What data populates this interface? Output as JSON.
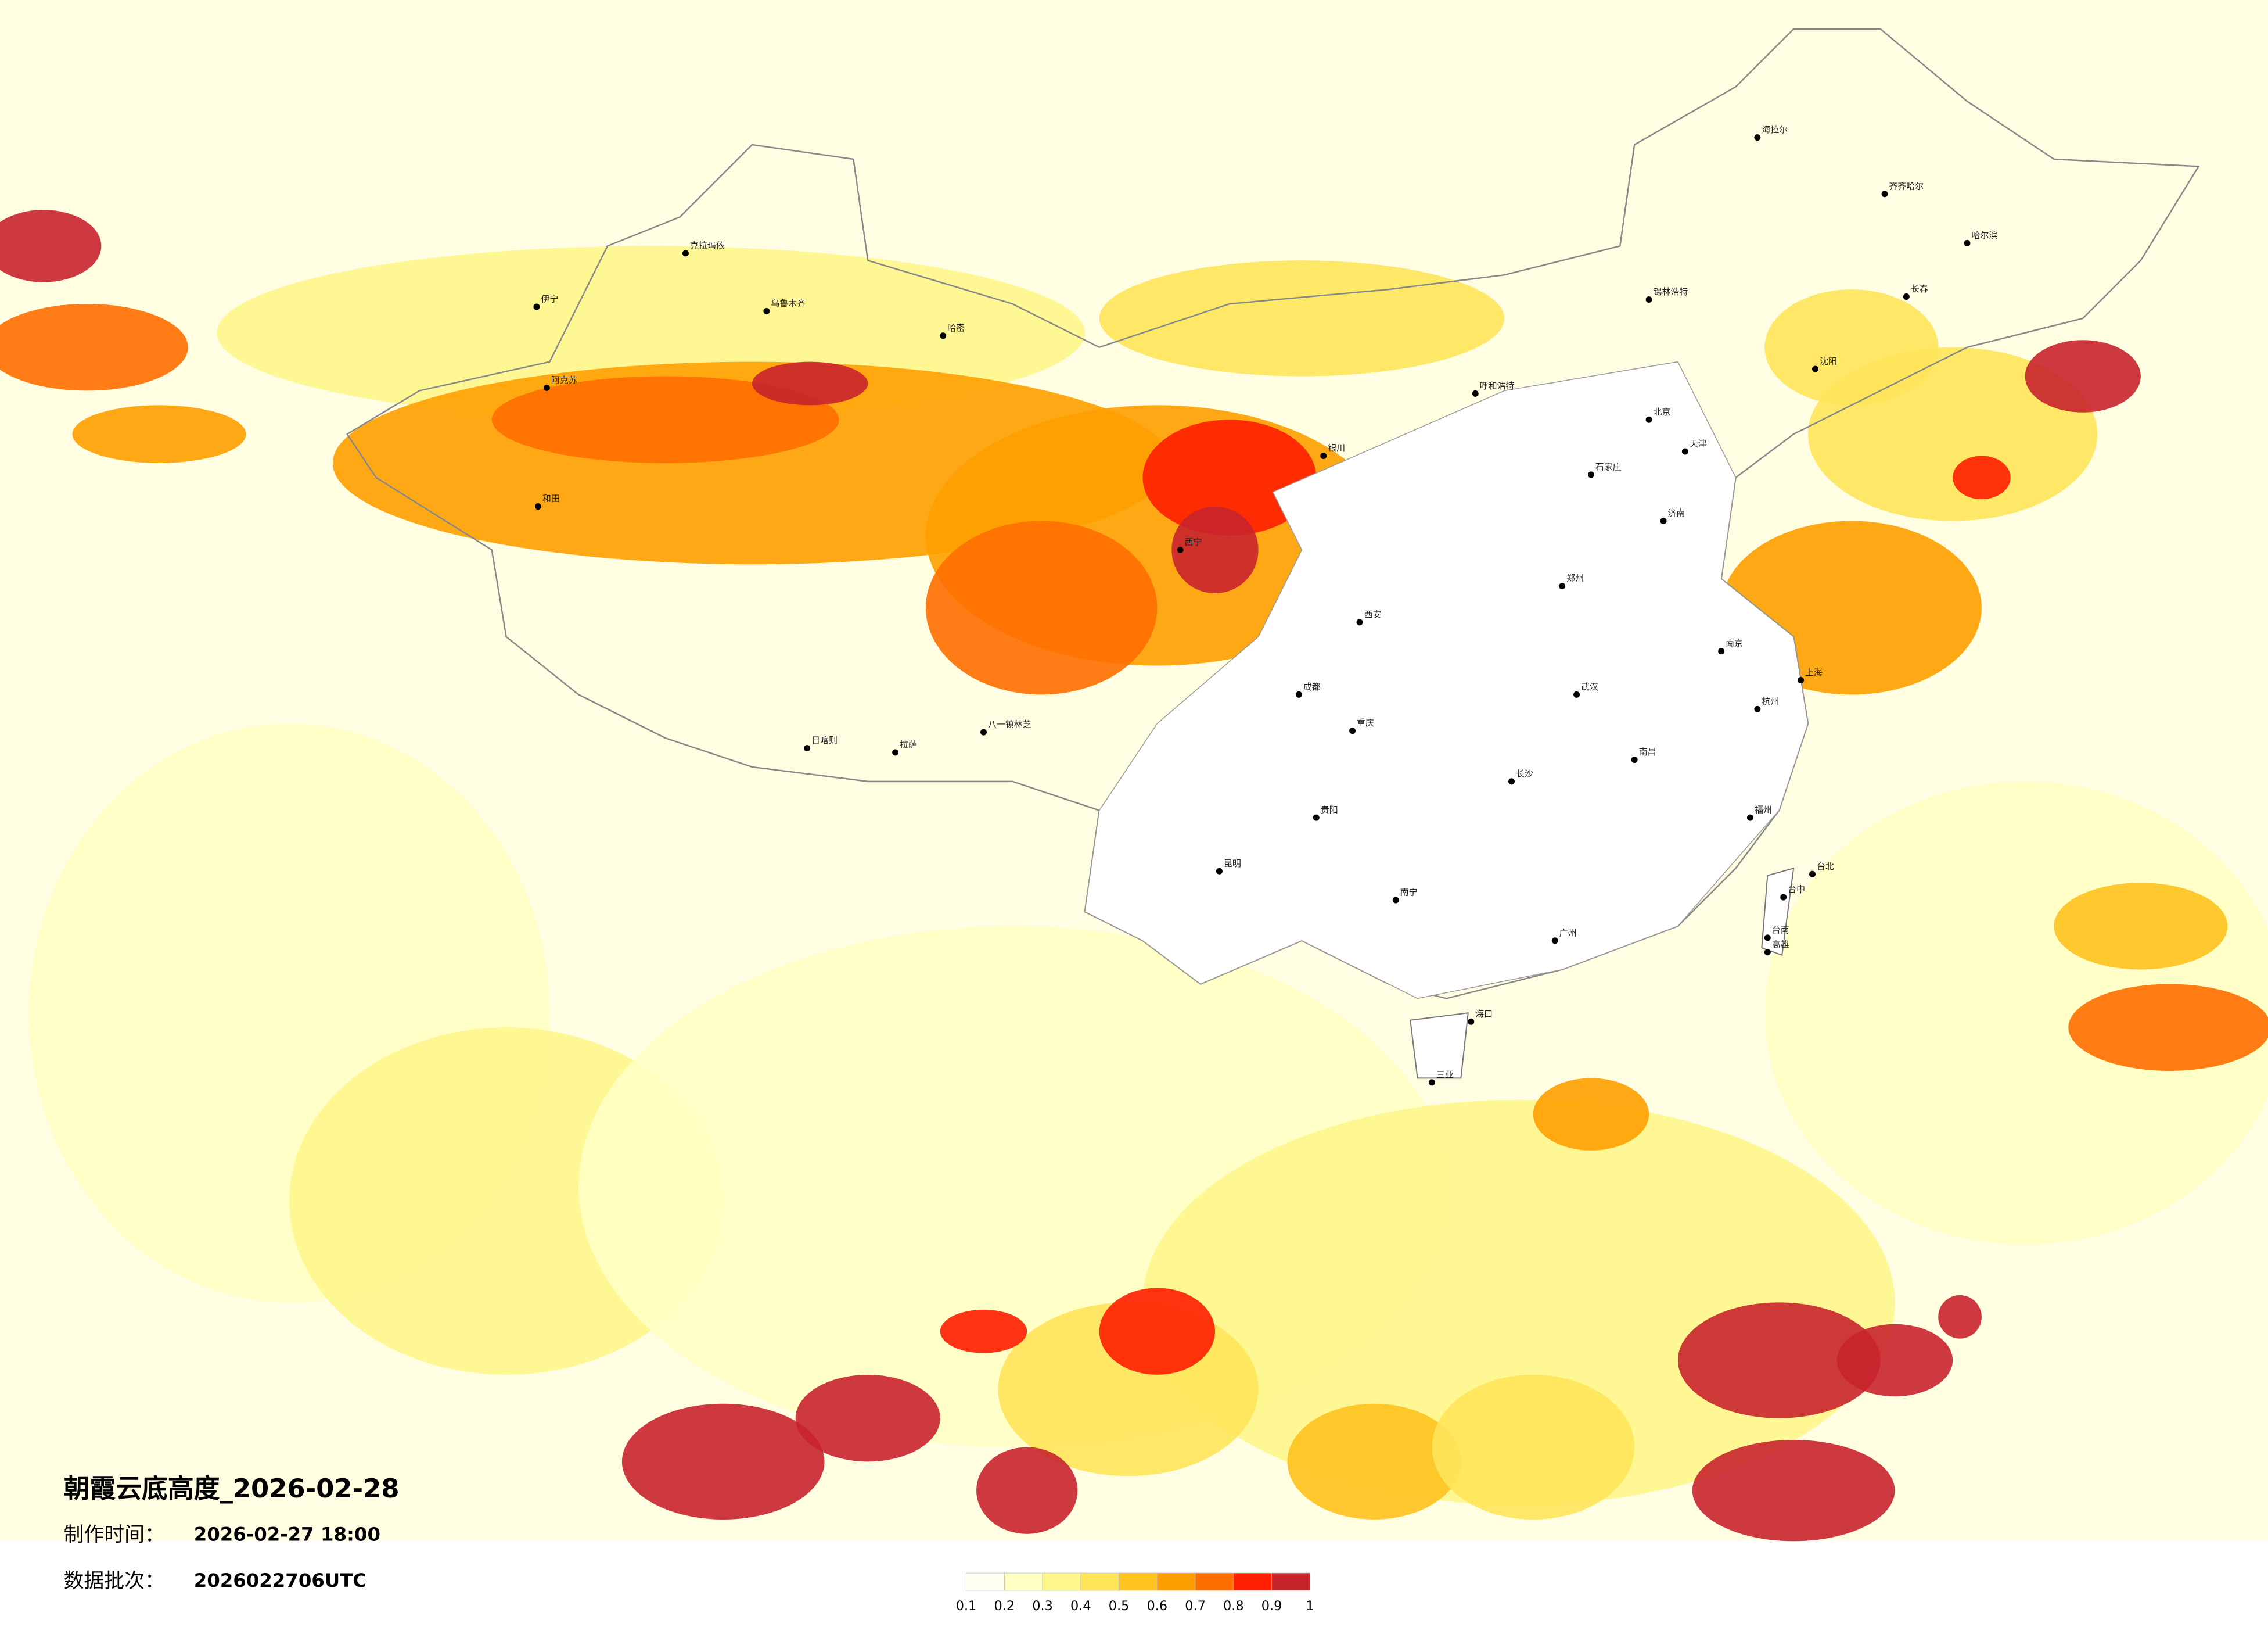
{
  "title": "朝霞云底高度_2026-02-28",
  "info": {
    "made_label": "制作时间：",
    "made_time": "2026-02-27 18:00",
    "batch_label": "数据批次：",
    "batch": "2026022706UTC"
  },
  "colorbar": {
    "ticks": [
      0.1,
      0.2,
      0.3,
      0.4,
      0.5,
      0.6,
      0.7,
      0.8,
      0.9,
      1
    ],
    "colors": [
      "#fffff0",
      "#ffffc4",
      "#fff68c",
      "#ffe45a",
      "#ffc21e",
      "#ff9e00",
      "#ff6e00",
      "#ff1e00",
      "#c8242c"
    ]
  },
  "cities": [
    "伊宁",
    "克拉玛依",
    "乌鲁木齐",
    "哈密",
    "阿克苏",
    "和田",
    "拉萨",
    "日喀则",
    "八一镇林芝",
    "西宁",
    "银川",
    "呼和浩特",
    "锡林浩特",
    "海拉尔",
    "齐齐哈尔",
    "哈尔滨",
    "长春",
    "沈阳",
    "北京",
    "天津",
    "石家庄",
    "济南",
    "郑州",
    "西安",
    "南京",
    "上海",
    "杭州",
    "武汉",
    "长沙",
    "南昌",
    "福州",
    "成都",
    "重庆",
    "贵阳",
    "昆明",
    "南宁",
    "广州",
    "海口",
    "三亚",
    "台北",
    "台中",
    "台南",
    "高雄"
  ]
}
